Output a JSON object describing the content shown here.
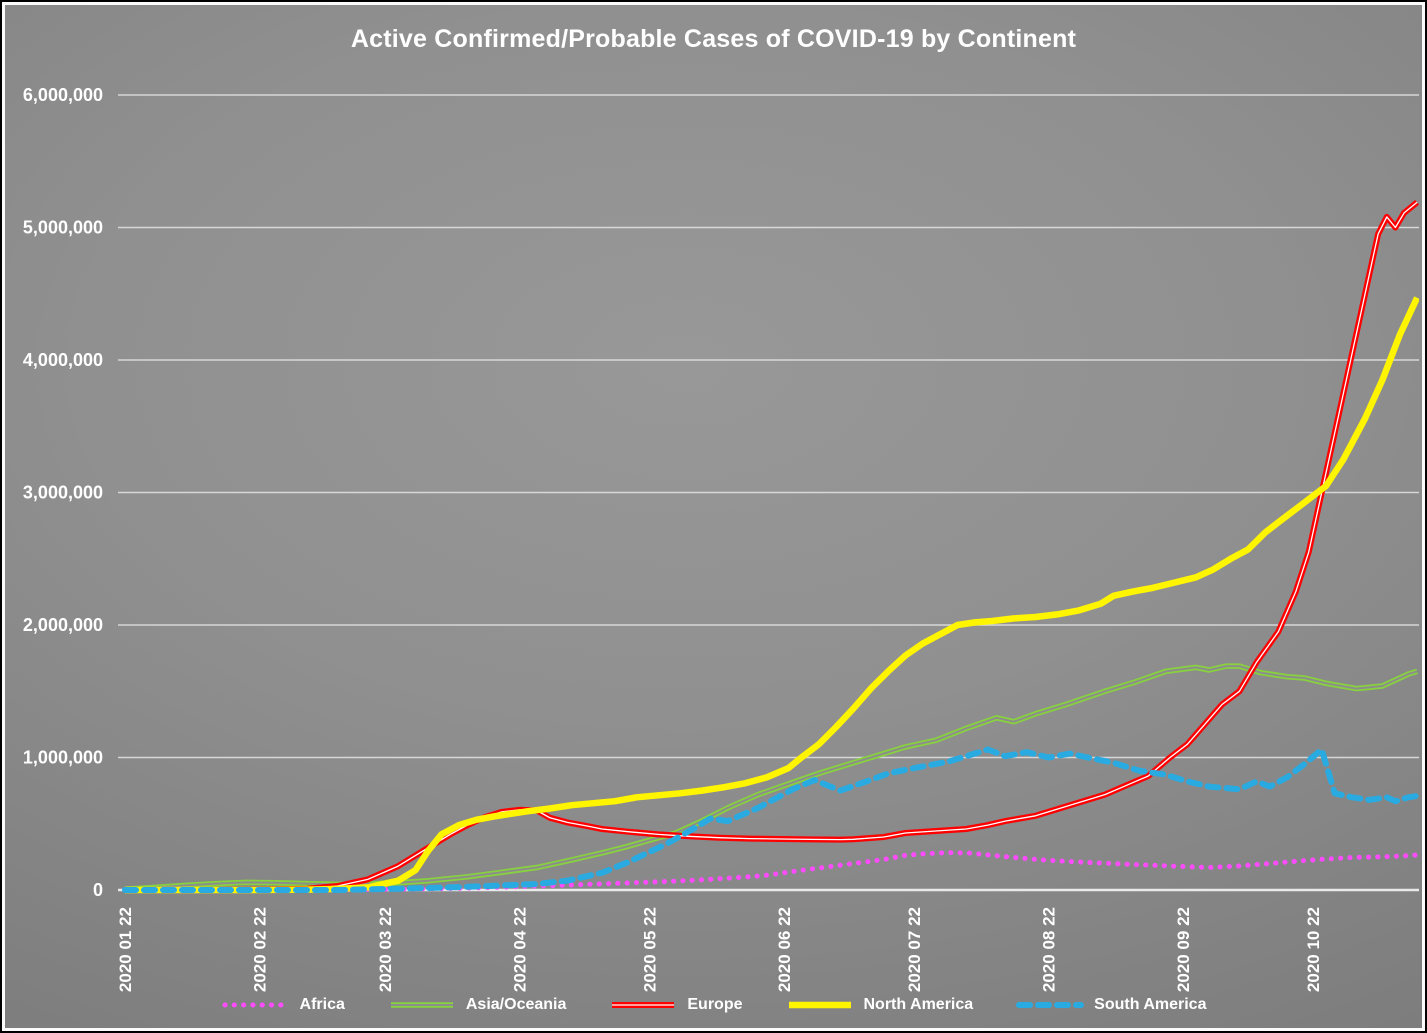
{
  "title": "Active Confirmed/Probable Cases of COVID-19 by Continent",
  "chart_data": {
    "type": "line",
    "title": "Active Confirmed/Probable Cases of COVID-19 by Continent",
    "legend_position": "bottom",
    "grid": "horizontal",
    "y_axis": {
      "range": [
        0,
        6000000
      ],
      "ticks": [
        {
          "value": 0,
          "label": "0"
        },
        {
          "value": 1000000,
          "label": "1,000,000"
        },
        {
          "value": 2000000,
          "label": "2,000,000"
        },
        {
          "value": 3000000,
          "label": "3,000,000"
        },
        {
          "value": 4000000,
          "label": "4,000,000"
        },
        {
          "value": 5000000,
          "label": "5,000,000"
        },
        {
          "value": 6000000,
          "label": "6,000,000"
        }
      ]
    },
    "x_axis": {
      "unit": "days since 2020-01-22",
      "ticks": [
        {
          "day": 0,
          "label": "2020 01 22"
        },
        {
          "day": 31,
          "label": "2020 02 22"
        },
        {
          "day": 60,
          "label": "2020 03 22"
        },
        {
          "day": 91,
          "label": "2020 04 22"
        },
        {
          "day": 121,
          "label": "2020 05 22"
        },
        {
          "day": 152,
          "label": "2020 06 22"
        },
        {
          "day": 182,
          "label": "2020 07 22"
        },
        {
          "day": 213,
          "label": "2020 08 22"
        },
        {
          "day": 244,
          "label": "2020 09 22"
        },
        {
          "day": 274,
          "label": "2020 10 22"
        }
      ]
    },
    "series": [
      {
        "key": "africa",
        "label": "Africa",
        "color": "#ff4bff",
        "line_style": "dotted",
        "core": "none",
        "width": 5,
        "points": [
          [
            0,
            0
          ],
          [
            14,
            0
          ],
          [
            28,
            0
          ],
          [
            42,
            2000
          ],
          [
            56,
            4000
          ],
          [
            63,
            6000
          ],
          [
            70,
            9000
          ],
          [
            77,
            13000
          ],
          [
            84,
            19000
          ],
          [
            91,
            26000
          ],
          [
            98,
            33000
          ],
          [
            105,
            41000
          ],
          [
            112,
            49000
          ],
          [
            119,
            57000
          ],
          [
            126,
            66000
          ],
          [
            133,
            77000
          ],
          [
            140,
            91000
          ],
          [
            147,
            107000
          ],
          [
            154,
            140000
          ],
          [
            161,
            170000
          ],
          [
            168,
            200000
          ],
          [
            175,
            230000
          ],
          [
            180,
            262000
          ],
          [
            185,
            275000
          ],
          [
            190,
            282000
          ],
          [
            195,
            278000
          ],
          [
            203,
            252000
          ],
          [
            210,
            231000
          ],
          [
            217,
            216000
          ],
          [
            224,
            205000
          ],
          [
            231,
            195000
          ],
          [
            238,
            186000
          ],
          [
            245,
            176000
          ],
          [
            250,
            170000
          ],
          [
            257,
            182000
          ],
          [
            264,
            200000
          ],
          [
            271,
            220000
          ],
          [
            277,
            234000
          ],
          [
            283,
            245000
          ],
          [
            290,
            251000
          ],
          [
            294,
            256000
          ],
          [
            298,
            264000
          ]
        ]
      },
      {
        "key": "asia_oceania",
        "label": "Asia/Oceania",
        "color": "#87d23e",
        "line_style": "solid",
        "core": "background",
        "width": 5.5,
        "points": [
          [
            0,
            5000
          ],
          [
            7,
            20000
          ],
          [
            14,
            35000
          ],
          [
            21,
            48000
          ],
          [
            28,
            57000
          ],
          [
            35,
            55000
          ],
          [
            42,
            48000
          ],
          [
            49,
            42000
          ],
          [
            56,
            45000
          ],
          [
            63,
            55000
          ],
          [
            70,
            70000
          ],
          [
            79,
            100000
          ],
          [
            86,
            130000
          ],
          [
            95,
            170000
          ],
          [
            102,
            220000
          ],
          [
            110,
            280000
          ],
          [
            116,
            330000
          ],
          [
            123,
            395000
          ],
          [
            127,
            430000
          ],
          [
            133,
            520000
          ],
          [
            139,
            620000
          ],
          [
            146,
            720000
          ],
          [
            153,
            800000
          ],
          [
            160,
            880000
          ],
          [
            167,
            950000
          ],
          [
            173,
            1010000
          ],
          [
            180,
            1080000
          ],
          [
            187,
            1130000
          ],
          [
            194,
            1220000
          ],
          [
            201,
            1300000
          ],
          [
            205,
            1270000
          ],
          [
            210,
            1330000
          ],
          [
            217,
            1400000
          ],
          [
            226,
            1500000
          ],
          [
            233,
            1570000
          ],
          [
            240,
            1650000
          ],
          [
            247,
            1680000
          ],
          [
            250,
            1660000
          ],
          [
            254,
            1690000
          ],
          [
            257,
            1690000
          ],
          [
            262,
            1640000
          ],
          [
            268,
            1610000
          ],
          [
            272,
            1600000
          ],
          [
            277,
            1560000
          ],
          [
            284,
            1520000
          ],
          [
            290,
            1540000
          ],
          [
            296,
            1630000
          ],
          [
            298,
            1650000
          ]
        ]
      },
      {
        "key": "europe",
        "label": "Europe",
        "color": "#fe0000",
        "line_style": "solid",
        "core": "white",
        "width": 6,
        "points": [
          [
            0,
            0
          ],
          [
            14,
            0
          ],
          [
            28,
            3000
          ],
          [
            35,
            5000
          ],
          [
            42,
            10000
          ],
          [
            49,
            30000
          ],
          [
            56,
            80000
          ],
          [
            63,
            180000
          ],
          [
            70,
            320000
          ],
          [
            75,
            420000
          ],
          [
            79,
            490000
          ],
          [
            83,
            550000
          ],
          [
            87,
            590000
          ],
          [
            91,
            605000
          ],
          [
            95,
            600000
          ],
          [
            98,
            545000
          ],
          [
            102,
            510000
          ],
          [
            107,
            480000
          ],
          [
            110,
            460000
          ],
          [
            116,
            440000
          ],
          [
            123,
            420000
          ],
          [
            130,
            405000
          ],
          [
            137,
            395000
          ],
          [
            144,
            388000
          ],
          [
            151,
            385000
          ],
          [
            158,
            382000
          ],
          [
            165,
            380000
          ],
          [
            168,
            383000
          ],
          [
            175,
            400000
          ],
          [
            180,
            430000
          ],
          [
            187,
            445000
          ],
          [
            194,
            460000
          ],
          [
            199,
            490000
          ],
          [
            203,
            520000
          ],
          [
            210,
            560000
          ],
          [
            217,
            630000
          ],
          [
            226,
            720000
          ],
          [
            231,
            790000
          ],
          [
            236,
            860000
          ],
          [
            241,
            1000000
          ],
          [
            245,
            1100000
          ],
          [
            249,
            1250000
          ],
          [
            253,
            1400000
          ],
          [
            257,
            1500000
          ],
          [
            261,
            1720000
          ],
          [
            266,
            1950000
          ],
          [
            270,
            2250000
          ],
          [
            273,
            2550000
          ],
          [
            276,
            3000000
          ],
          [
            280,
            3600000
          ],
          [
            283,
            4050000
          ],
          [
            286,
            4500000
          ],
          [
            289,
            4950000
          ],
          [
            291,
            5080000
          ],
          [
            293,
            5000000
          ],
          [
            295,
            5110000
          ],
          [
            298,
            5190000
          ]
        ]
      },
      {
        "key": "north_america",
        "label": "North America",
        "color": "#fff500",
        "line_style": "solid",
        "core": "none",
        "width": 6.5,
        "points": [
          [
            0,
            0
          ],
          [
            14,
            0
          ],
          [
            28,
            0
          ],
          [
            42,
            3000
          ],
          [
            49,
            8000
          ],
          [
            56,
            20000
          ],
          [
            63,
            70000
          ],
          [
            67,
            150000
          ],
          [
            70,
            300000
          ],
          [
            73,
            420000
          ],
          [
            77,
            490000
          ],
          [
            81,
            530000
          ],
          [
            85,
            555000
          ],
          [
            89,
            575000
          ],
          [
            93,
            595000
          ],
          [
            98,
            615000
          ],
          [
            103,
            640000
          ],
          [
            108,
            655000
          ],
          [
            113,
            670000
          ],
          [
            118,
            700000
          ],
          [
            123,
            715000
          ],
          [
            128,
            730000
          ],
          [
            133,
            750000
          ],
          [
            138,
            775000
          ],
          [
            143,
            805000
          ],
          [
            148,
            850000
          ],
          [
            153,
            920000
          ],
          [
            156,
            1000000
          ],
          [
            160,
            1100000
          ],
          [
            164,
            1230000
          ],
          [
            168,
            1370000
          ],
          [
            172,
            1520000
          ],
          [
            176,
            1650000
          ],
          [
            180,
            1770000
          ],
          [
            184,
            1860000
          ],
          [
            188,
            1930000
          ],
          [
            192,
            2000000
          ],
          [
            196,
            2020000
          ],
          [
            200,
            2030000
          ],
          [
            205,
            2050000
          ],
          [
            210,
            2060000
          ],
          [
            215,
            2080000
          ],
          [
            220,
            2110000
          ],
          [
            225,
            2160000
          ],
          [
            228,
            2220000
          ],
          [
            232,
            2250000
          ],
          [
            237,
            2280000
          ],
          [
            242,
            2320000
          ],
          [
            247,
            2360000
          ],
          [
            251,
            2420000
          ],
          [
            255,
            2500000
          ],
          [
            259,
            2570000
          ],
          [
            263,
            2700000
          ],
          [
            267,
            2800000
          ],
          [
            271,
            2900000
          ],
          [
            277,
            3050000
          ],
          [
            281,
            3250000
          ],
          [
            286,
            3560000
          ],
          [
            290,
            3850000
          ],
          [
            294,
            4190000
          ],
          [
            298,
            4470000
          ]
        ]
      },
      {
        "key": "south_america",
        "label": "South America",
        "color": "#29abe2",
        "line_style": "dashed",
        "core": "none",
        "width": 6,
        "points": [
          [
            0,
            0
          ],
          [
            28,
            0
          ],
          [
            49,
            0
          ],
          [
            56,
            5000
          ],
          [
            63,
            10000
          ],
          [
            70,
            15000
          ],
          [
            77,
            22000
          ],
          [
            84,
            30000
          ],
          [
            91,
            40000
          ],
          [
            95,
            45000
          ],
          [
            102,
            70000
          ],
          [
            110,
            130000
          ],
          [
            116,
            210000
          ],
          [
            125,
            350000
          ],
          [
            131,
            460000
          ],
          [
            135,
            540000
          ],
          [
            139,
            520000
          ],
          [
            146,
            620000
          ],
          [
            154,
            760000
          ],
          [
            159,
            830000
          ],
          [
            165,
            750000
          ],
          [
            171,
            820000
          ],
          [
            176,
            880000
          ],
          [
            182,
            920000
          ],
          [
            190,
            970000
          ],
          [
            195,
            1020000
          ],
          [
            199,
            1060000
          ],
          [
            203,
            1010000
          ],
          [
            208,
            1040000
          ],
          [
            213,
            1000000
          ],
          [
            218,
            1030000
          ],
          [
            222,
            1000000
          ],
          [
            228,
            960000
          ],
          [
            234,
            900000
          ],
          [
            240,
            870000
          ],
          [
            245,
            820000
          ],
          [
            250,
            780000
          ],
          [
            257,
            760000
          ],
          [
            261,
            820000
          ],
          [
            264,
            780000
          ],
          [
            268,
            850000
          ],
          [
            272,
            950000
          ],
          [
            276,
            1060000
          ],
          [
            279,
            730000
          ],
          [
            283,
            700000
          ],
          [
            287,
            680000
          ],
          [
            291,
            700000
          ],
          [
            293,
            670000
          ],
          [
            296,
            700000
          ],
          [
            298,
            710000
          ]
        ]
      }
    ]
  },
  "colors": {
    "background_center": "#989898",
    "background_edge": "#6d6d6d",
    "gridline": "#dedede",
    "axis_line": "#f2f2f2",
    "text": "#ffffff",
    "frame_inner": "#fbfbfb",
    "frame_outer": "#000000"
  }
}
